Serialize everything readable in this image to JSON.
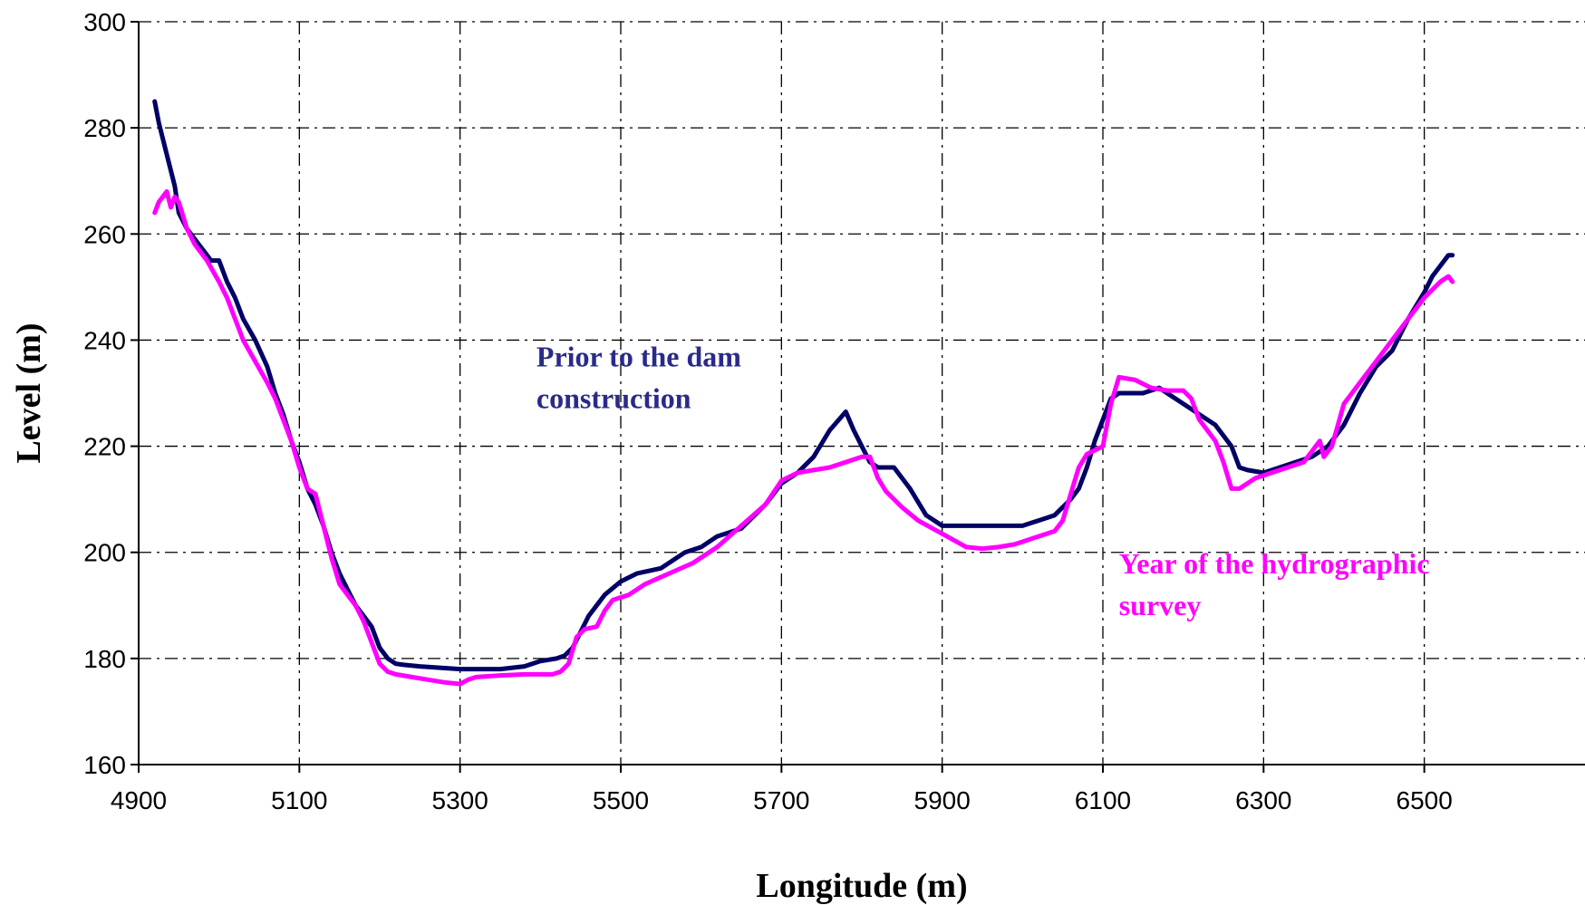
{
  "chart_data": {
    "type": "line",
    "title": "",
    "xlabel": "Longitude (m)",
    "ylabel": "Level (m)",
    "xlim": [
      4900,
      6700
    ],
    "ylim": [
      160,
      300
    ],
    "xticks": [
      4900,
      5100,
      5300,
      5500,
      5700,
      5900,
      6100,
      6300,
      6500
    ],
    "yticks": [
      160,
      180,
      200,
      220,
      240,
      260,
      280,
      300
    ],
    "grid": true,
    "legend": "none",
    "annotations": [
      {
        "lines": [
          "Prior to the dam",
          "construction"
        ],
        "color": "#2a2a8a",
        "at": [
          5395,
          235
        ],
        "series": "prior"
      },
      {
        "lines": [
          "Year of the hydrographic",
          "survey"
        ],
        "color": "#ff00ff",
        "at": [
          6120,
          196
        ],
        "series": "survey"
      }
    ],
    "series": [
      {
        "id": "prior",
        "color": "#000066",
        "points": [
          [
            4920,
            285
          ],
          [
            4925,
            281
          ],
          [
            4935,
            275
          ],
          [
            4945,
            269
          ],
          [
            4950,
            264
          ],
          [
            4960,
            261
          ],
          [
            4975,
            258
          ],
          [
            4985,
            256
          ],
          [
            4990,
            255
          ],
          [
            5000,
            255
          ],
          [
            5010,
            251
          ],
          [
            5020,
            248
          ],
          [
            5030,
            244
          ],
          [
            5045,
            240
          ],
          [
            5060,
            235
          ],
          [
            5070,
            230
          ],
          [
            5080,
            226
          ],
          [
            5090,
            221
          ],
          [
            5100,
            217
          ],
          [
            5110,
            212
          ],
          [
            5120,
            209
          ],
          [
            5130,
            205
          ],
          [
            5140,
            200
          ],
          [
            5150,
            196
          ],
          [
            5160,
            193
          ],
          [
            5170,
            190
          ],
          [
            5180,
            188
          ],
          [
            5190,
            186
          ],
          [
            5200,
            182
          ],
          [
            5210,
            180
          ],
          [
            5220,
            179
          ],
          [
            5230,
            178.8
          ],
          [
            5250,
            178.5
          ],
          [
            5300,
            178
          ],
          [
            5350,
            178
          ],
          [
            5380,
            178.5
          ],
          [
            5400,
            179.5
          ],
          [
            5420,
            180
          ],
          [
            5430,
            180.5
          ],
          [
            5440,
            182
          ],
          [
            5450,
            185
          ],
          [
            5460,
            188
          ],
          [
            5470,
            190
          ],
          [
            5480,
            192
          ],
          [
            5500,
            194.5
          ],
          [
            5520,
            196
          ],
          [
            5550,
            197
          ],
          [
            5580,
            200
          ],
          [
            5600,
            201
          ],
          [
            5620,
            203
          ],
          [
            5650,
            204.5
          ],
          [
            5680,
            209
          ],
          [
            5700,
            213
          ],
          [
            5720,
            215
          ],
          [
            5740,
            218
          ],
          [
            5760,
            223
          ],
          [
            5780,
            226.5
          ],
          [
            5790,
            223
          ],
          [
            5800,
            220
          ],
          [
            5810,
            217
          ],
          [
            5820,
            216
          ],
          [
            5840,
            216
          ],
          [
            5860,
            212
          ],
          [
            5880,
            207
          ],
          [
            5900,
            205
          ],
          [
            5950,
            205
          ],
          [
            6000,
            205
          ],
          [
            6020,
            206
          ],
          [
            6040,
            207
          ],
          [
            6060,
            210
          ],
          [
            6070,
            212
          ],
          [
            6080,
            216
          ],
          [
            6090,
            221
          ],
          [
            6100,
            225
          ],
          [
            6110,
            229
          ],
          [
            6120,
            230
          ],
          [
            6150,
            230
          ],
          [
            6170,
            231
          ],
          [
            6180,
            230
          ],
          [
            6200,
            228
          ],
          [
            6220,
            226
          ],
          [
            6240,
            224
          ],
          [
            6260,
            220
          ],
          [
            6270,
            216
          ],
          [
            6280,
            215.5
          ],
          [
            6300,
            215
          ],
          [
            6320,
            216
          ],
          [
            6340,
            217
          ],
          [
            6360,
            218
          ],
          [
            6380,
            220
          ],
          [
            6400,
            224
          ],
          [
            6420,
            230
          ],
          [
            6440,
            235
          ],
          [
            6460,
            238
          ],
          [
            6480,
            244
          ],
          [
            6500,
            249
          ],
          [
            6510,
            252
          ],
          [
            6520,
            254
          ],
          [
            6530,
            256
          ],
          [
            6535,
            256
          ]
        ]
      },
      {
        "id": "survey",
        "color": "#ff00ff",
        "points": [
          [
            4920,
            264
          ],
          [
            4925,
            266
          ],
          [
            4935,
            268
          ],
          [
            4940,
            265
          ],
          [
            4945,
            267
          ],
          [
            4950,
            266
          ],
          [
            4960,
            261
          ],
          [
            4970,
            258
          ],
          [
            4985,
            255
          ],
          [
            5000,
            251
          ],
          [
            5010,
            248
          ],
          [
            5020,
            244
          ],
          [
            5030,
            240
          ],
          [
            5045,
            236
          ],
          [
            5060,
            232
          ],
          [
            5070,
            229
          ],
          [
            5080,
            225
          ],
          [
            5090,
            221
          ],
          [
            5100,
            216
          ],
          [
            5110,
            212
          ],
          [
            5120,
            211
          ],
          [
            5130,
            205
          ],
          [
            5140,
            199
          ],
          [
            5150,
            194
          ],
          [
            5160,
            192
          ],
          [
            5170,
            190
          ],
          [
            5180,
            187
          ],
          [
            5190,
            183
          ],
          [
            5200,
            179
          ],
          [
            5210,
            177.5
          ],
          [
            5220,
            177
          ],
          [
            5240,
            176.5
          ],
          [
            5260,
            176
          ],
          [
            5280,
            175.5
          ],
          [
            5300,
            175.2
          ],
          [
            5310,
            176
          ],
          [
            5320,
            176.5
          ],
          [
            5350,
            176.8
          ],
          [
            5380,
            177
          ],
          [
            5400,
            177
          ],
          [
            5415,
            177
          ],
          [
            5425,
            177.5
          ],
          [
            5435,
            179
          ],
          [
            5445,
            184
          ],
          [
            5455,
            185.5
          ],
          [
            5470,
            186
          ],
          [
            5480,
            189
          ],
          [
            5490,
            191
          ],
          [
            5510,
            192
          ],
          [
            5530,
            194
          ],
          [
            5560,
            196
          ],
          [
            5590,
            198
          ],
          [
            5620,
            201
          ],
          [
            5650,
            205
          ],
          [
            5680,
            209
          ],
          [
            5700,
            213.5
          ],
          [
            5720,
            215
          ],
          [
            5740,
            215.5
          ],
          [
            5760,
            216
          ],
          [
            5780,
            217
          ],
          [
            5800,
            218
          ],
          [
            5810,
            218
          ],
          [
            5820,
            214
          ],
          [
            5830,
            211.5
          ],
          [
            5850,
            208.5
          ],
          [
            5870,
            206
          ],
          [
            5900,
            203.5
          ],
          [
            5930,
            201
          ],
          [
            5950,
            200.7
          ],
          [
            5970,
            201
          ],
          [
            5990,
            201.5
          ],
          [
            6000,
            202
          ],
          [
            6020,
            203
          ],
          [
            6040,
            204
          ],
          [
            6050,
            206
          ],
          [
            6060,
            211
          ],
          [
            6070,
            216
          ],
          [
            6080,
            218.5
          ],
          [
            6100,
            220
          ],
          [
            6110,
            228
          ],
          [
            6120,
            233
          ],
          [
            6140,
            232.5
          ],
          [
            6160,
            231
          ],
          [
            6180,
            230.5
          ],
          [
            6200,
            230.5
          ],
          [
            6210,
            229
          ],
          [
            6220,
            225
          ],
          [
            6240,
            221
          ],
          [
            6250,
            217
          ],
          [
            6260,
            212
          ],
          [
            6270,
            212
          ],
          [
            6290,
            214
          ],
          [
            6310,
            215
          ],
          [
            6330,
            216
          ],
          [
            6350,
            217
          ],
          [
            6360,
            219
          ],
          [
            6370,
            221
          ],
          [
            6375,
            218
          ],
          [
            6385,
            220
          ],
          [
            6400,
            228
          ],
          [
            6420,
            232
          ],
          [
            6440,
            236
          ],
          [
            6460,
            240
          ],
          [
            6480,
            244
          ],
          [
            6500,
            248
          ],
          [
            6520,
            251
          ],
          [
            6530,
            252
          ],
          [
            6535,
            251
          ]
        ]
      }
    ]
  }
}
